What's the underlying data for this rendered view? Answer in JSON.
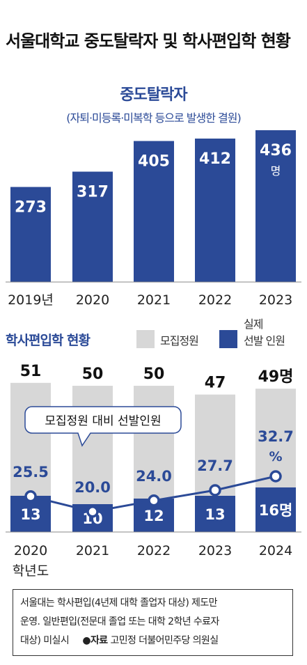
{
  "title": "서울대학교 중도탈락자 및 학사편입학 현황",
  "chart_data": [
    {
      "type": "bar",
      "title": "중도탈락자",
      "subtitle": "(자퇴·미등록·미복학 등으로 발생한 결원)",
      "categories": [
        "2019년",
        "2020",
        "2021",
        "2022",
        "2023"
      ],
      "values": [
        273,
        317,
        405,
        412,
        436
      ],
      "value_labels": [
        "273",
        "317",
        "405",
        "412",
        "436"
      ],
      "last_unit": "명",
      "color": "#2b4a97"
    },
    {
      "type": "bar",
      "title": "학사편입학 현황",
      "categories": [
        "2020",
        "2021",
        "2022",
        "2023",
        "2024"
      ],
      "category_suffix": "학년도",
      "series": [
        {
          "name": "모집정원",
          "values": [
            51,
            50,
            50,
            47,
            49
          ],
          "labels": [
            "51",
            "50",
            "50",
            "47",
            "49명"
          ],
          "color": "#d7d7d7"
        },
        {
          "name": "실제 선발 인원",
          "values": [
            13,
            10,
            12,
            13,
            16
          ],
          "labels": [
            "13",
            "10",
            "12",
            "13",
            "16명"
          ],
          "color": "#2b4a97"
        }
      ]
    },
    {
      "type": "line",
      "title": "모집정원 대비 선발인원",
      "categories": [
        "2020",
        "2021",
        "2022",
        "2023",
        "2024"
      ],
      "values": [
        25.5,
        20.0,
        24.0,
        27.7,
        32.7
      ],
      "value_labels": [
        "25.5",
        "20.0",
        "24.0",
        "27.7",
        "32.7"
      ],
      "last_unit": "%",
      "color": "#2b4a97"
    }
  ],
  "legend": {
    "section_title": "학사편입학 현황",
    "quota_label": "모집정원",
    "actual_label_1": "실제",
    "actual_label_2": "선발 인원"
  },
  "note": {
    "line1": "서울대는 학사편입(4년제 대학 졸업자 대상) 제도만",
    "line2": "운영. 일반편입(전문대 졸업 또는 대학 2학년 수료자",
    "line3_prefix": "대상) 미실시",
    "source_marker": "●",
    "source_label": "자료",
    "source_text": "고민정 더불어민주당 의원실"
  }
}
